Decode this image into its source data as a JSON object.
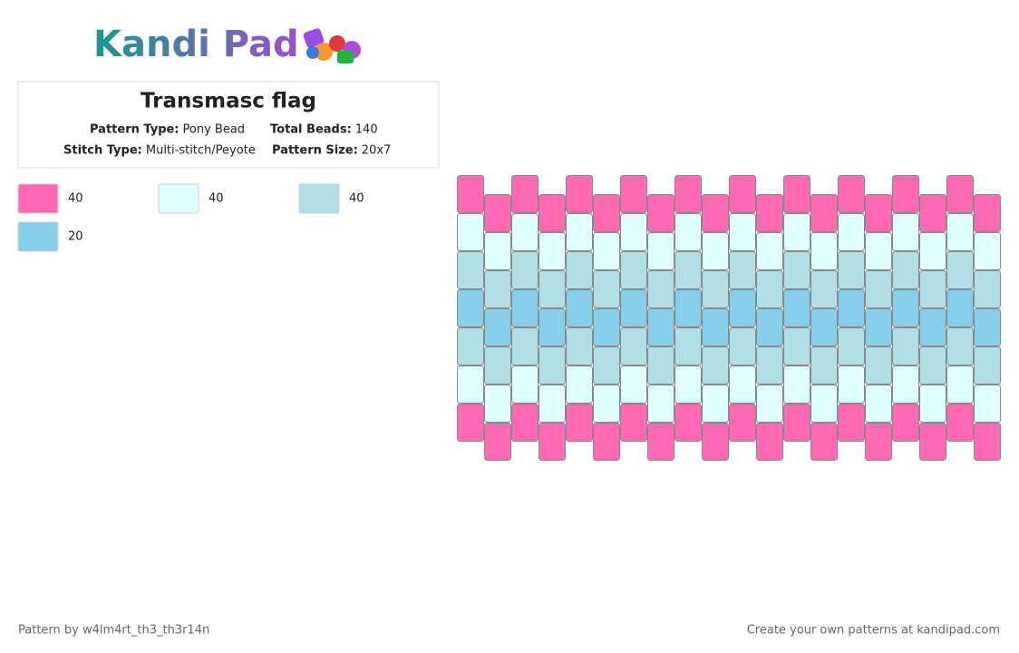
{
  "header": {
    "logo": "Kandi Pad"
  },
  "info": {
    "title": "Transmasc flag",
    "fields": [
      {
        "label": "Pattern Type:",
        "value": "Pony Bead"
      },
      {
        "label": "Total Beads:",
        "value": 140
      },
      {
        "label": "Stitch Type:",
        "value": "Multi-stitch/Peyote"
      },
      {
        "label": "Pattern Size:",
        "value": "20x7"
      }
    ]
  },
  "palette": [
    {
      "color": "#ff69b4",
      "count": 40
    },
    {
      "color": "#e0ffff",
      "count": 40
    },
    {
      "color": "#b0e0e6",
      "count": 40
    },
    {
      "color": "#87ceeb",
      "count": 20
    }
  ],
  "pattern": {
    "rows": [
      [
        0,
        0,
        0,
        0,
        0,
        0,
        0,
        0,
        0,
        0,
        0,
        0,
        0,
        0,
        0,
        0,
        0,
        0,
        0,
        0
      ],
      [
        1,
        1,
        1,
        1,
        1,
        1,
        1,
        1,
        1,
        1,
        1,
        1,
        1,
        1,
        1,
        1,
        1,
        1,
        1,
        1
      ],
      [
        2,
        2,
        2,
        2,
        2,
        2,
        2,
        2,
        2,
        2,
        2,
        2,
        2,
        2,
        2,
        2,
        2,
        2,
        2,
        2
      ],
      [
        3,
        3,
        3,
        3,
        3,
        3,
        3,
        3,
        3,
        3,
        3,
        3,
        3,
        3,
        3,
        3,
        3,
        3,
        3,
        3
      ],
      [
        2,
        2,
        2,
        2,
        2,
        2,
        2,
        2,
        2,
        2,
        2,
        2,
        2,
        2,
        2,
        2,
        2,
        2,
        2,
        2
      ],
      [
        1,
        1,
        1,
        1,
        1,
        1,
        1,
        1,
        1,
        1,
        1,
        1,
        1,
        1,
        1,
        1,
        1,
        1,
        1,
        1
      ],
      [
        0,
        0,
        0,
        0,
        0,
        0,
        0,
        0,
        0,
        0,
        0,
        0,
        0,
        0,
        0,
        0,
        0,
        0,
        0,
        0
      ]
    ]
  },
  "footer": {
    "credit": "Pattern by w4lm4rt_th3_th3r14n",
    "promo": "Create your own patterns at kandipad.com"
  }
}
